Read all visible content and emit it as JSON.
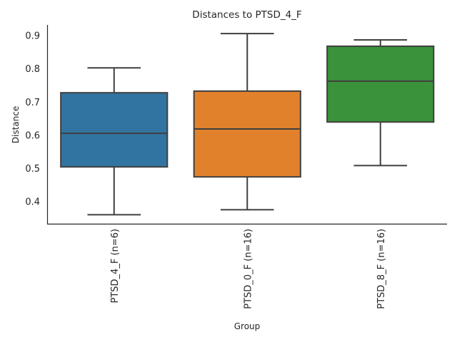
{
  "chart_data": {
    "type": "box",
    "title": "Distances to PTSD_4_F",
    "xlabel": "Group",
    "ylabel": "Distance",
    "ylim": [
      0.333,
      0.932
    ],
    "yticks": [
      "0.4",
      "0.5",
      "0.6",
      "0.7",
      "0.8",
      "0.9"
    ],
    "ytick_values": [
      0.4,
      0.5,
      0.6,
      0.7,
      0.8,
      0.9
    ],
    "grid": false,
    "categories": [
      "PTSD_4_F (n=6)",
      "PTSD_0_F (n=16)",
      "PTSD_8_F (n=16)"
    ],
    "series": [
      {
        "name": "PTSD_4_F (n=6)",
        "color": "#3274a1",
        "whisker_low": 0.361,
        "q1": 0.505,
        "median": 0.606,
        "q3": 0.728,
        "whisker_high": 0.803
      },
      {
        "name": "PTSD_0_F (n=16)",
        "color": "#e1812c",
        "whisker_low": 0.376,
        "q1": 0.475,
        "median": 0.619,
        "q3": 0.733,
        "whisker_high": 0.906
      },
      {
        "name": "PTSD_8_F (n=16)",
        "color": "#3a923a",
        "whisker_low": 0.509,
        "q1": 0.64,
        "median": 0.763,
        "q3": 0.868,
        "whisker_high": 0.887
      }
    ]
  }
}
